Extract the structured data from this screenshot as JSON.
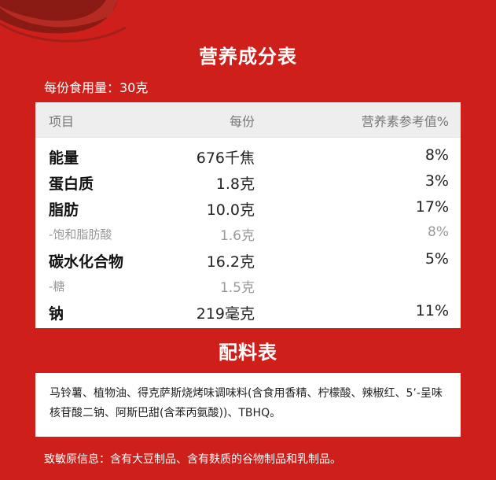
{
  "nutrition": {
    "title": "营养成分表",
    "serving": "每份食用量：30克",
    "headers": {
      "item": "项目",
      "per_serving": "每份",
      "nrv": "营养素参考值%"
    },
    "rows": [
      {
        "name": "能量",
        "value": "676千焦",
        "nrv": "8%",
        "sub": false
      },
      {
        "name": "蛋白质",
        "value": "1.8克",
        "nrv": "3%",
        "sub": false
      },
      {
        "name": "脂肪",
        "value": "10.0克",
        "nrv": "17%",
        "sub": false
      },
      {
        "name": "-饱和脂肪酸",
        "value": "1.6克",
        "nrv": "8%",
        "sub": true
      },
      {
        "name": "碳水化合物",
        "value": "16.2克",
        "nrv": "5%",
        "sub": false
      },
      {
        "name": "-糖",
        "value": "1.5克",
        "nrv": "",
        "sub": true
      },
      {
        "name": "钠",
        "value": "219毫克",
        "nrv": "11%",
        "sub": false
      }
    ]
  },
  "ingredients": {
    "title": "配料表",
    "text": "马铃薯、植物油、得克萨斯烧烤味调味料(含食用香精、柠檬酸、辣椒红、5’-呈味核苷酸二钠、阿斯巴甜(含苯丙氨酸))、TBHQ。"
  },
  "allergen": "致敏原信息：含有大豆制品、含有麸质的谷物制品和乳制品。",
  "colors": {
    "background": "#cf1f1a",
    "panel": "#ffffff",
    "header_row": "#eeeeee"
  }
}
